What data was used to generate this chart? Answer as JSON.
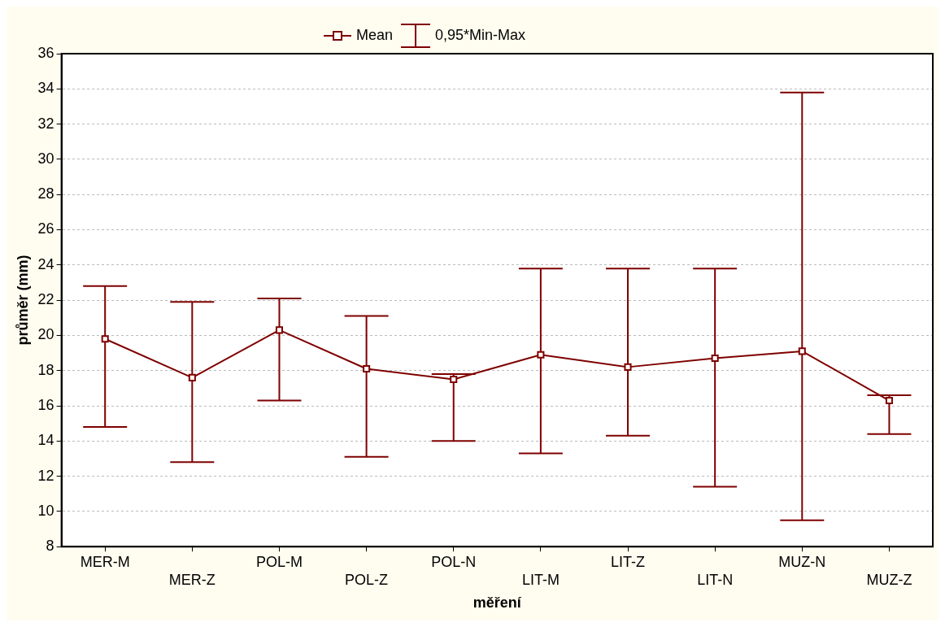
{
  "chart_data": {
    "type": "line",
    "xlabel": "měření",
    "ylabel": "průměr (mm)",
    "categories": [
      "MER-M",
      "MER-Z",
      "POL-M",
      "POL-Z",
      "POL-N",
      "LIT-M",
      "LIT-Z",
      "LIT-N",
      "MUZ-N",
      "MUZ-Z"
    ],
    "series": [
      {
        "name": "Mean",
        "color": "#7f0000",
        "values": [
          19.8,
          17.6,
          20.3,
          18.1,
          17.5,
          18.9,
          18.2,
          18.7,
          19.1,
          16.3
        ],
        "errors": [
          [
            14.8,
            22.8
          ],
          [
            12.8,
            21.9
          ],
          [
            16.3,
            22.1
          ],
          [
            13.1,
            21.1
          ],
          [
            14.0,
            17.8
          ],
          [
            13.3,
            23.8
          ],
          [
            14.3,
            23.8
          ],
          [
            11.4,
            23.8
          ],
          [
            9.5,
            33.8
          ],
          [
            14.4,
            16.6
          ]
        ]
      }
    ],
    "annotations": [
      "0,95*Min-Max"
    ],
    "ylim": [
      8,
      36
    ],
    "yticks": [
      8,
      10,
      12,
      14,
      16,
      18,
      20,
      22,
      24,
      26,
      28,
      30,
      32,
      34,
      36
    ],
    "grid": "y",
    "legend": "top",
    "marker": "square",
    "line_style": "solid"
  }
}
